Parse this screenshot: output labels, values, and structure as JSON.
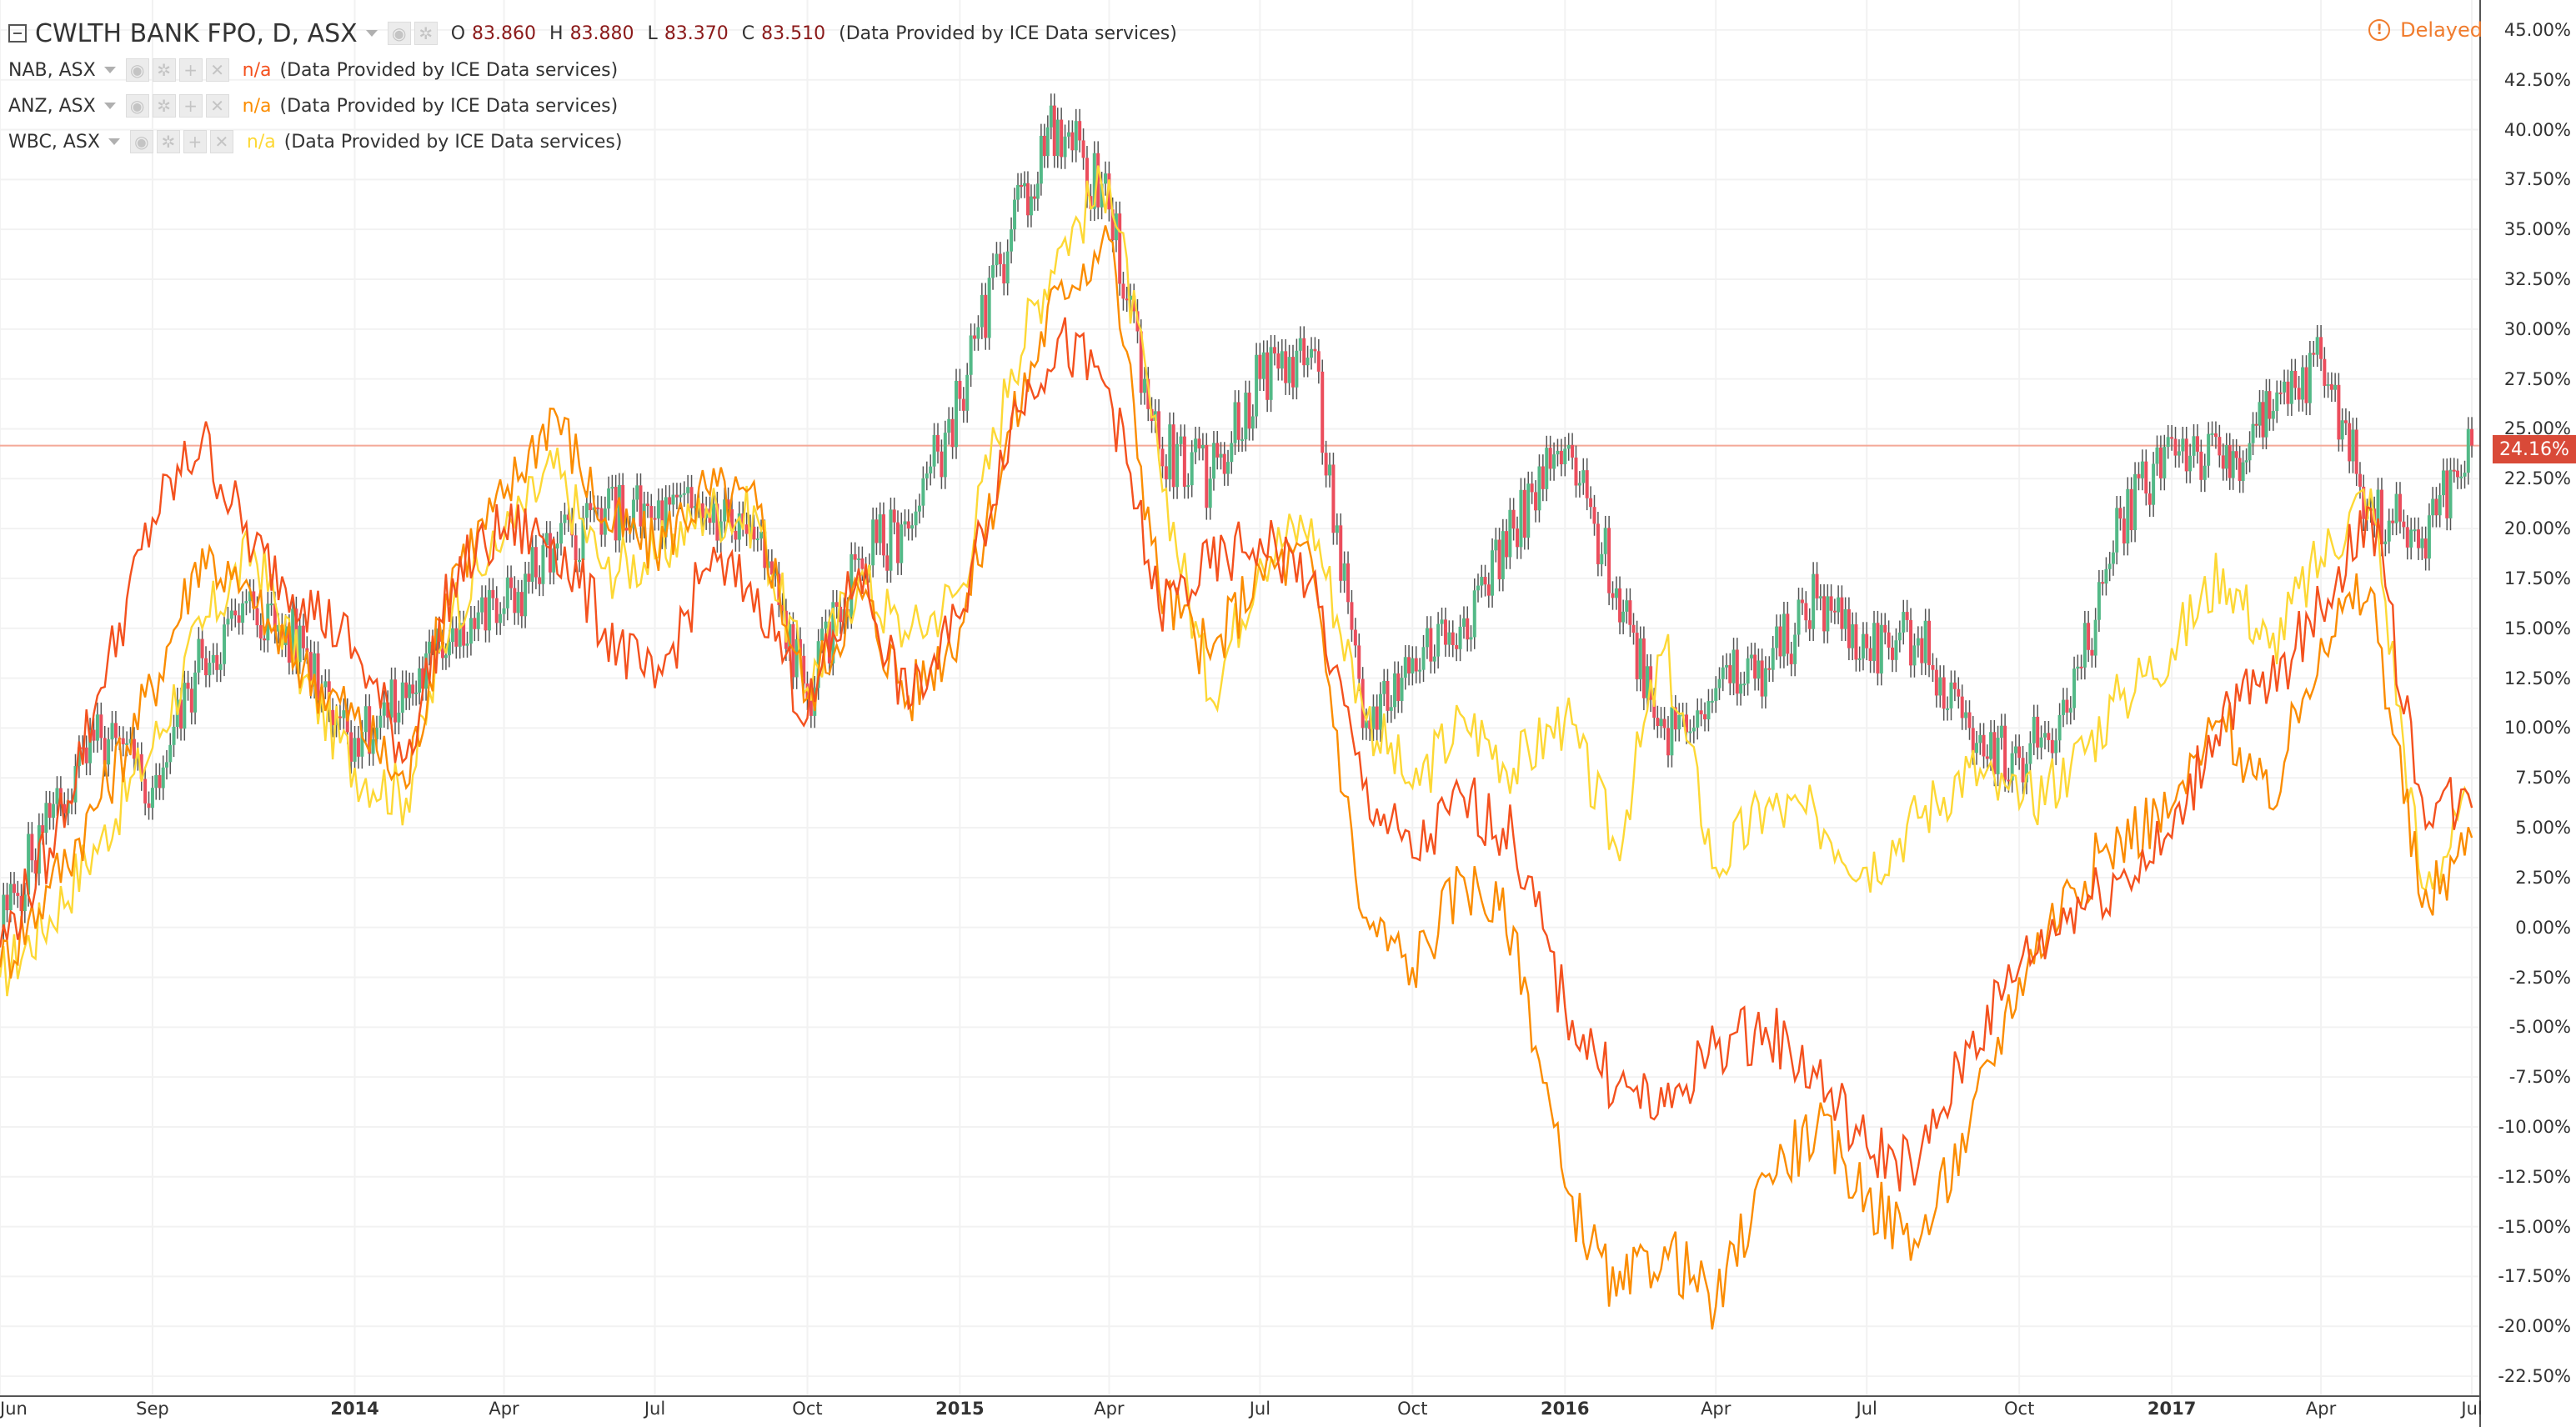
{
  "header": {
    "symbol_title": "CWLTH BANK FPO, D, ASX",
    "ohlc": [
      {
        "label": "O",
        "value": "83.860"
      },
      {
        "label": "H",
        "value": "83.880"
      },
      {
        "label": "L",
        "value": "83.370"
      },
      {
        "label": "C",
        "value": "83.510"
      }
    ],
    "data_source": "(Data Provided by ICE Data services)",
    "status": "Delayed",
    "status_icon": "exclamation-circle-icon"
  },
  "comparisons": [
    {
      "name": "NAB, ASX",
      "value": "n/a",
      "source": "(Data Provided by ICE Data services)",
      "color": "#f4511e"
    },
    {
      "name": "ANZ, ASX",
      "value": "n/a",
      "source": "(Data Provided by ICE Data services)",
      "color": "#fb8c00"
    },
    {
      "name": "WBC, ASX",
      "value": "n/a",
      "source": "(Data Provided by ICE Data services)",
      "color": "#fdd835"
    }
  ],
  "colors": {
    "candle_up": "#53b987",
    "candle_down": "#eb4d5c",
    "candle_wick": "#555555",
    "nab": "#f4511e",
    "anz": "#fb8c00",
    "wbc": "#fdd835",
    "last_value_line": "#f4a998",
    "price_tag": "#d94a38"
  },
  "chart_data": {
    "type": "line",
    "title": "CWLTH BANK FPO, D, ASX",
    "y_axis": {
      "unit": "%",
      "range": [
        -23.5,
        46.5
      ],
      "ticks": [
        45,
        42.5,
        40,
        37.5,
        35,
        32.5,
        30,
        27.5,
        25,
        22.5,
        20,
        17.5,
        15,
        12.5,
        10,
        7.5,
        5,
        2.5,
        0,
        -2.5,
        -5,
        -7.5,
        -10,
        -12.5,
        -15,
        -17.5,
        -20,
        -22.5
      ],
      "tick_labels": [
        "45.00%",
        "42.50%",
        "40.00%",
        "37.50%",
        "35.00%",
        "32.50%",
        "30.00%",
        "27.50%",
        "25.00%",
        "22.50%",
        "20.00%",
        "17.50%",
        "15.00%",
        "12.50%",
        "10.00%",
        "7.50%",
        "5.00%",
        "2.50%",
        "0.00%",
        "-2.50%",
        "-5.00%",
        "-7.50%",
        "-10.00%",
        "-12.50%",
        "-15.00%",
        "-17.50%",
        "-20.00%",
        "-22.50%"
      ],
      "last_value": 24.16,
      "last_value_label": "24.16%"
    },
    "x_axis": {
      "range": [
        "2013-06-01",
        "2017-07-06"
      ],
      "ticks": [
        {
          "date": "2013-06-01",
          "label": "Jun"
        },
        {
          "date": "2013-09-01",
          "label": "Sep"
        },
        {
          "date": "2014-01-01",
          "label": "2014",
          "bold": true
        },
        {
          "date": "2014-04-01",
          "label": "Apr"
        },
        {
          "date": "2014-07-01",
          "label": "Jul"
        },
        {
          "date": "2014-10-01",
          "label": "Oct"
        },
        {
          "date": "2015-01-01",
          "label": "2015",
          "bold": true
        },
        {
          "date": "2015-04-01",
          "label": "Apr"
        },
        {
          "date": "2015-07-01",
          "label": "Jul"
        },
        {
          "date": "2015-10-01",
          "label": "Oct"
        },
        {
          "date": "2016-01-01",
          "label": "2016",
          "bold": true
        },
        {
          "date": "2016-04-01",
          "label": "Apr"
        },
        {
          "date": "2016-07-01",
          "label": "Jul"
        },
        {
          "date": "2016-10-01",
          "label": "Oct"
        },
        {
          "date": "2017-01-01",
          "label": "2017",
          "bold": true
        },
        {
          "date": "2017-04-01",
          "label": "Apr"
        },
        {
          "date": "2017-07-01",
          "label": "Jul"
        }
      ]
    },
    "grid": true,
    "legend_position": "top-left",
    "series": [
      {
        "name": "CWLTH BANK FPO, D, ASX",
        "style": "candles",
        "x": [
          "2013-06-01",
          "2013-07-01",
          "2013-08-01",
          "2013-09-01",
          "2013-10-01",
          "2013-11-01",
          "2013-12-01",
          "2014-01-01",
          "2014-02-01",
          "2014-03-01",
          "2014-04-01",
          "2014-05-01",
          "2014-06-01",
          "2014-07-01",
          "2014-08-01",
          "2014-09-01",
          "2014-10-01",
          "2014-11-01",
          "2014-12-01",
          "2015-01-01",
          "2015-02-01",
          "2015-03-01",
          "2015-04-01",
          "2015-05-01",
          "2015-06-01",
          "2015-07-01",
          "2015-08-01",
          "2015-09-01",
          "2015-10-01",
          "2015-11-01",
          "2015-12-01",
          "2016-01-01",
          "2016-02-01",
          "2016-03-01",
          "2016-04-01",
          "2016-05-01",
          "2016-06-01",
          "2016-07-01",
          "2016-08-01",
          "2016-09-01",
          "2016-10-01",
          "2016-11-01",
          "2016-12-01",
          "2017-01-01",
          "2017-02-01",
          "2017-03-01",
          "2017-04-01",
          "2017-05-01",
          "2017-06-01",
          "2017-07-01"
        ],
        "values": [
          0.0,
          5.5,
          9.5,
          7.0,
          13.5,
          16.0,
          14.0,
          9.5,
          11.5,
          15.0,
          16.0,
          19.0,
          21.0,
          20.5,
          21.0,
          19.5,
          11.5,
          18.5,
          20.0,
          26.5,
          35.0,
          40.5,
          36.0,
          24.0,
          22.5,
          27.5,
          29.0,
          10.0,
          13.5,
          15.5,
          20.0,
          24.0,
          17.0,
          10.0,
          12.0,
          13.0,
          16.5,
          14.0,
          14.5,
          10.0,
          8.5,
          11.0,
          20.5,
          24.5,
          23.0,
          25.5,
          28.5,
          21.0,
          19.5,
          24.16
        ]
      },
      {
        "name": "NAB, ASX",
        "style": "line",
        "x": [
          "2013-06-01",
          "2013-07-01",
          "2013-08-01",
          "2013-09-01",
          "2013-10-01",
          "2013-11-01",
          "2013-12-01",
          "2014-01-01",
          "2014-02-01",
          "2014-03-01",
          "2014-04-01",
          "2014-05-01",
          "2014-06-01",
          "2014-07-01",
          "2014-08-01",
          "2014-09-01",
          "2014-10-01",
          "2014-11-01",
          "2014-12-01",
          "2015-01-01",
          "2015-02-01",
          "2015-03-01",
          "2015-04-01",
          "2015-05-01",
          "2015-06-01",
          "2015-07-01",
          "2015-08-01",
          "2015-09-01",
          "2015-10-01",
          "2015-11-01",
          "2015-12-01",
          "2016-01-01",
          "2016-02-01",
          "2016-03-01",
          "2016-04-01",
          "2016-05-01",
          "2016-06-01",
          "2016-07-01",
          "2016-08-01",
          "2016-09-01",
          "2016-10-01",
          "2016-11-01",
          "2016-12-01",
          "2017-01-01",
          "2017-02-01",
          "2017-03-01",
          "2017-04-01",
          "2017-05-01",
          "2017-06-01",
          "2017-07-01"
        ],
        "values": [
          -1.0,
          4.0,
          12.0,
          20.5,
          24.5,
          19.0,
          16.5,
          14.0,
          8.5,
          17.5,
          20.0,
          19.5,
          15.0,
          12.0,
          18.0,
          17.0,
          10.5,
          18.0,
          11.0,
          15.5,
          25.5,
          29.5,
          27.0,
          16.0,
          18.0,
          19.5,
          17.5,
          7.0,
          3.5,
          6.5,
          4.5,
          -4.0,
          -8.0,
          -9.0,
          -6.0,
          -5.0,
          -7.5,
          -11.0,
          -12.0,
          -6.0,
          -2.0,
          1.0,
          2.5,
          4.5,
          11.0,
          12.0,
          16.0,
          21.0,
          6.5,
          6.0
        ]
      },
      {
        "name": "ANZ, ASX",
        "style": "line",
        "x": [
          "2013-06-01",
          "2013-07-01",
          "2013-08-01",
          "2013-09-01",
          "2013-10-01",
          "2013-11-01",
          "2013-12-01",
          "2014-01-01",
          "2014-02-01",
          "2014-03-01",
          "2014-04-01",
          "2014-05-01",
          "2014-06-01",
          "2014-07-01",
          "2014-08-01",
          "2014-09-01",
          "2014-10-01",
          "2014-11-01",
          "2014-12-01",
          "2015-01-01",
          "2015-02-01",
          "2015-03-01",
          "2015-04-01",
          "2015-05-01",
          "2015-06-01",
          "2015-07-01",
          "2015-08-01",
          "2015-09-01",
          "2015-10-01",
          "2015-11-01",
          "2015-12-01",
          "2016-01-01",
          "2016-02-01",
          "2016-03-01",
          "2016-04-01",
          "2016-05-01",
          "2016-06-01",
          "2016-07-01",
          "2016-08-01",
          "2016-09-01",
          "2016-10-01",
          "2016-11-01",
          "2016-12-01",
          "2017-01-01",
          "2017-02-01",
          "2017-03-01",
          "2017-04-01",
          "2017-05-01",
          "2017-06-01",
          "2017-07-01"
        ],
        "values": [
          -2.0,
          2.0,
          6.5,
          12.0,
          19.0,
          16.0,
          13.0,
          10.5,
          7.0,
          18.0,
          21.5,
          26.0,
          20.5,
          19.0,
          22.0,
          21.0,
          11.5,
          17.0,
          11.5,
          15.0,
          25.0,
          32.0,
          34.5,
          17.0,
          13.5,
          18.0,
          18.5,
          0.5,
          -2.0,
          2.5,
          0.0,
          -13.0,
          -18.5,
          -16.0,
          -19.0,
          -12.5,
          -10.0,
          -13.5,
          -16.0,
          -10.0,
          -2.5,
          2.0,
          4.5,
          6.0,
          10.5,
          6.0,
          14.5,
          17.0,
          1.0,
          4.5
        ]
      },
      {
        "name": "WBC, ASX",
        "style": "line",
        "x": [
          "2013-06-01",
          "2013-07-01",
          "2013-08-01",
          "2013-09-01",
          "2013-10-01",
          "2013-11-01",
          "2013-12-01",
          "2014-01-01",
          "2014-02-01",
          "2014-03-01",
          "2014-04-01",
          "2014-05-01",
          "2014-06-01",
          "2014-07-01",
          "2014-08-01",
          "2014-09-01",
          "2014-10-01",
          "2014-11-01",
          "2014-12-01",
          "2015-01-01",
          "2015-02-01",
          "2015-03-01",
          "2015-04-01",
          "2015-05-01",
          "2015-06-01",
          "2015-07-01",
          "2015-08-01",
          "2015-09-01",
          "2015-10-01",
          "2015-11-01",
          "2015-12-01",
          "2016-01-01",
          "2016-02-01",
          "2016-03-01",
          "2016-04-01",
          "2016-05-01",
          "2016-06-01",
          "2016-07-01",
          "2016-08-01",
          "2016-09-01",
          "2016-10-01",
          "2016-11-01",
          "2016-12-01",
          "2017-01-01",
          "2017-02-01",
          "2017-03-01",
          "2017-04-01",
          "2017-05-01",
          "2017-06-01",
          "2017-07-01"
        ],
        "values": [
          -2.5,
          0.5,
          4.5,
          9.0,
          15.0,
          19.0,
          12.5,
          8.0,
          6.5,
          16.0,
          19.5,
          23.0,
          18.0,
          18.5,
          21.0,
          20.5,
          12.0,
          17.5,
          14.5,
          17.0,
          28.0,
          34.0,
          37.5,
          23.5,
          11.5,
          18.5,
          20.5,
          11.0,
          7.0,
          10.5,
          8.0,
          10.5,
          4.0,
          14.0,
          3.0,
          6.0,
          5.5,
          3.0,
          5.5,
          8.0,
          6.0,
          8.0,
          11.5,
          14.0,
          18.0,
          14.0,
          18.5,
          22.0,
          2.0,
          6.0
        ]
      }
    ]
  }
}
